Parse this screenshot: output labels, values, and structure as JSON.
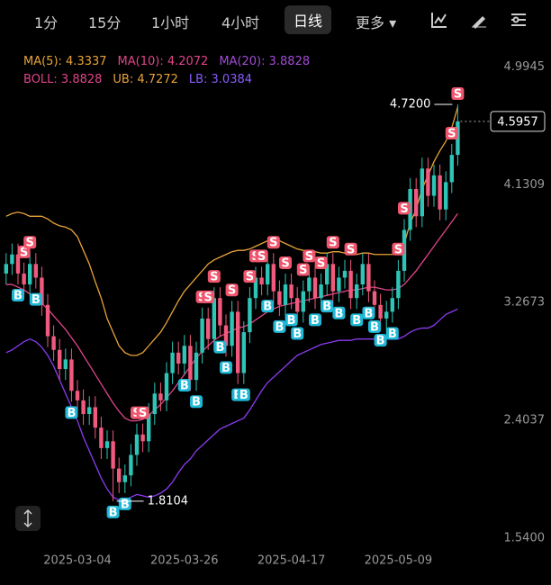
{
  "toolbar": [
    "1分",
    "15分",
    "1小时",
    "4小时",
    "日线",
    "更多"
  ],
  "chart_data": {
    "type": "candlestick",
    "legend_rows": [
      [
        {
          "text": "MA(5): 4.3337",
          "color": "#e8a33a"
        },
        {
          "text": "MA(10): 4.2072",
          "color": "#e0458a"
        },
        {
          "text": "MA(20): 3.8828",
          "color": "#a24bd6"
        }
      ],
      [
        {
          "text": "BOLL: 3.8828",
          "color": "#e0458a"
        },
        {
          "text": "UB: 4.7272",
          "color": "#e8a33a"
        },
        {
          "text": "LB: 3.0384",
          "color": "#8a5cff"
        }
      ]
    ],
    "categories": [
      null,
      null,
      null,
      null,
      null,
      null,
      null,
      null,
      null,
      null,
      null,
      null,
      "2025-03-04",
      null,
      null,
      null,
      null,
      null,
      null,
      null,
      null,
      null,
      null,
      null,
      null,
      null,
      null,
      null,
      null,
      null,
      "2025-03-26",
      null,
      null,
      null,
      null,
      null,
      null,
      null,
      null,
      null,
      null,
      null,
      null,
      null,
      null,
      null,
      null,
      null,
      "2025-04-17",
      null,
      null,
      null,
      null,
      null,
      null,
      null,
      null,
      null,
      null,
      null,
      null,
      null,
      null,
      null,
      null,
      null,
      "2025-05-09",
      null,
      null,
      null,
      null,
      null,
      null,
      null,
      null,
      null,
      null
    ],
    "open": [
      3.48,
      3.55,
      3.62,
      3.48,
      3.4,
      3.55,
      3.45,
      3.25,
      3.02,
      2.92,
      2.78,
      2.85,
      2.62,
      2.55,
      2.45,
      2.5,
      2.35,
      2.2,
      2.25,
      2.05,
      1.95,
      2.0,
      2.15,
      2.3,
      2.25,
      2.45,
      2.6,
      2.55,
      2.75,
      2.9,
      2.82,
      2.95,
      2.7,
      2.9,
      3.15,
      3.0,
      3.3,
      3.1,
      2.95,
      3.2,
      2.75,
      3.05,
      3.3,
      3.45,
      3.4,
      3.55,
      3.35,
      3.25,
      3.4,
      3.3,
      3.2,
      3.35,
      3.45,
      3.3,
      3.4,
      3.55,
      3.35,
      3.45,
      3.5,
      3.3,
      3.4,
      3.55,
      3.35,
      3.25,
      3.15,
      3.2,
      3.3,
      3.5,
      3.8,
      4.1,
      3.9,
      4.25,
      4.05,
      4.2,
      3.95,
      4.15,
      4.35
    ],
    "high": [
      3.63,
      3.7,
      3.7,
      3.56,
      3.63,
      3.63,
      3.53,
      3.33,
      3.1,
      3.0,
      2.93,
      2.93,
      2.7,
      2.63,
      2.58,
      2.58,
      2.43,
      2.33,
      2.33,
      2.13,
      2.08,
      2.23,
      2.38,
      2.38,
      2.53,
      2.68,
      2.68,
      2.83,
      2.98,
      2.98,
      3.03,
      3.03,
      2.98,
      3.23,
      3.23,
      3.38,
      3.38,
      3.18,
      3.28,
      3.28,
      3.13,
      3.38,
      3.53,
      3.53,
      3.63,
      3.63,
      3.43,
      3.48,
      3.48,
      3.38,
      3.43,
      3.53,
      3.53,
      3.48,
      3.63,
      3.63,
      3.53,
      3.58,
      3.58,
      3.48,
      3.63,
      3.63,
      3.43,
      3.33,
      3.28,
      3.38,
      3.58,
      3.88,
      4.18,
      4.18,
      4.33,
      4.33,
      4.28,
      4.28,
      4.23,
      4.43,
      4.72
    ],
    "low": [
      3.4,
      3.47,
      3.4,
      3.32,
      3.32,
      3.37,
      3.17,
      2.94,
      2.84,
      2.7,
      2.7,
      2.54,
      2.47,
      2.37,
      2.37,
      2.27,
      2.12,
      2.12,
      1.8104,
      1.87,
      1.87,
      1.92,
      2.07,
      2.17,
      2.17,
      2.37,
      2.47,
      2.47,
      2.67,
      2.74,
      2.74,
      2.62,
      2.62,
      2.82,
      2.92,
      2.92,
      3.02,
      2.87,
      2.87,
      2.67,
      2.67,
      2.97,
      3.22,
      3.32,
      3.32,
      3.27,
      3.17,
      3.17,
      3.22,
      3.12,
      3.12,
      3.27,
      3.22,
      3.22,
      3.32,
      3.27,
      3.27,
      3.37,
      3.22,
      3.22,
      3.32,
      3.27,
      3.17,
      3.07,
      3.07,
      3.12,
      3.22,
      3.42,
      3.72,
      3.82,
      3.82,
      3.97,
      3.97,
      3.87,
      3.87,
      4.07,
      4.27
    ],
    "close": [
      3.55,
      3.62,
      3.48,
      3.4,
      3.55,
      3.45,
      3.25,
      3.02,
      2.92,
      2.78,
      2.85,
      2.62,
      2.55,
      2.45,
      2.5,
      2.35,
      2.2,
      2.25,
      2.05,
      1.95,
      2.0,
      2.15,
      2.3,
      2.25,
      2.45,
      2.6,
      2.55,
      2.75,
      2.9,
      2.82,
      2.95,
      2.7,
      2.9,
      3.15,
      3.0,
      3.3,
      3.1,
      2.95,
      3.2,
      2.75,
      3.05,
      3.3,
      3.45,
      3.4,
      3.55,
      3.35,
      3.25,
      3.4,
      3.3,
      3.2,
      3.35,
      3.45,
      3.3,
      3.4,
      3.55,
      3.35,
      3.45,
      3.5,
      3.3,
      3.4,
      3.55,
      3.35,
      3.25,
      3.15,
      3.2,
      3.3,
      3.5,
      3.8,
      4.1,
      3.9,
      4.25,
      4.05,
      4.2,
      3.95,
      4.15,
      4.35,
      4.5957
    ],
    "up_color": "#2ec4b6",
    "down_color": "#f05a7e",
    "series": [
      {
        "color": "#e8a33a",
        "values": [
          3.9,
          3.92,
          3.93,
          3.92,
          3.9,
          3.9,
          3.9,
          3.88,
          3.85,
          3.83,
          3.82,
          3.8,
          3.75,
          3.65,
          3.55,
          3.42,
          3.3,
          3.15,
          3.05,
          2.95,
          2.9,
          2.88,
          2.88,
          2.9,
          2.95,
          3.0,
          3.05,
          3.12,
          3.2,
          3.28,
          3.35,
          3.4,
          3.45,
          3.5,
          3.55,
          3.58,
          3.6,
          3.62,
          3.64,
          3.65,
          3.65,
          3.66,
          3.68,
          3.7,
          3.72,
          3.72,
          3.72,
          3.7,
          3.68,
          3.66,
          3.65,
          3.64,
          3.64,
          3.63,
          3.63,
          3.64,
          3.64,
          3.63,
          3.62,
          3.62,
          3.63,
          3.63,
          3.62,
          3.62,
          3.62,
          3.62,
          3.63,
          3.7,
          3.85,
          3.95,
          4.1,
          4.2,
          4.3,
          4.38,
          4.45,
          4.55,
          4.7
        ]
      },
      {
        "color": "#e0458a",
        "values": [
          3.4,
          3.4,
          3.38,
          3.36,
          3.33,
          3.3,
          3.26,
          3.22,
          3.17,
          3.12,
          3.07,
          3.01,
          2.95,
          2.88,
          2.81,
          2.74,
          2.67,
          2.6,
          2.53,
          2.47,
          2.42,
          2.4,
          2.4,
          2.41,
          2.44,
          2.48,
          2.52,
          2.57,
          2.62,
          2.68,
          2.74,
          2.8,
          2.86,
          2.91,
          2.95,
          2.99,
          3.02,
          3.04,
          3.06,
          3.08,
          3.09,
          3.11,
          3.14,
          3.17,
          3.2,
          3.22,
          3.24,
          3.25,
          3.26,
          3.27,
          3.28,
          3.29,
          3.3,
          3.31,
          3.32,
          3.33,
          3.34,
          3.35,
          3.36,
          3.36,
          3.37,
          3.38,
          3.38,
          3.37,
          3.36,
          3.36,
          3.37,
          3.4,
          3.45,
          3.5,
          3.56,
          3.62,
          3.68,
          3.74,
          3.8,
          3.86,
          3.92
        ]
      },
      {
        "color": "#8a3cf0",
        "values": [
          2.9,
          2.92,
          2.95,
          2.98,
          3.0,
          2.98,
          2.94,
          2.88,
          2.8,
          2.7,
          2.6,
          2.5,
          2.4,
          2.28,
          2.18,
          2.08,
          1.98,
          1.9,
          1.84,
          1.82,
          1.82,
          1.84,
          1.86,
          1.85,
          1.84,
          1.85,
          1.87,
          1.9,
          1.95,
          2.02,
          2.08,
          2.12,
          2.18,
          2.22,
          2.26,
          2.3,
          2.34,
          2.36,
          2.38,
          2.4,
          2.42,
          2.48,
          2.55,
          2.62,
          2.68,
          2.72,
          2.76,
          2.8,
          2.84,
          2.88,
          2.9,
          2.92,
          2.94,
          2.96,
          2.97,
          2.98,
          2.99,
          2.99,
          2.99,
          3.0,
          3.0,
          3.0,
          3.0,
          3.0,
          3.0,
          3.0,
          3.0,
          3.02,
          3.05,
          3.07,
          3.08,
          3.08,
          3.1,
          3.14,
          3.18,
          3.2,
          3.22
        ]
      }
    ],
    "signals": [
      null,
      null,
      "B",
      "S",
      "S",
      "B",
      null,
      null,
      null,
      null,
      null,
      "B",
      null,
      null,
      null,
      null,
      null,
      null,
      "B",
      null,
      "B",
      null,
      "S",
      "S",
      null,
      null,
      null,
      null,
      null,
      null,
      "B",
      null,
      "B",
      "S",
      "S",
      "S",
      "B",
      "B",
      "S",
      "B",
      "B",
      "S",
      "S",
      "S",
      "B",
      "S",
      "B",
      "S",
      "B",
      "B",
      "S",
      "S",
      "B",
      "S",
      "B",
      "S",
      "B",
      null,
      "S",
      "B",
      null,
      "B",
      "B",
      "B",
      null,
      "B",
      "S",
      "S",
      null,
      null,
      null,
      null,
      null,
      null,
      null,
      "S",
      "S"
    ],
    "buy_color": "#1fb8d6",
    "sell_color": "#f0566e",
    "ylim": [
      1.46,
      5.09
    ],
    "yticks": [
      {
        "value": 1.54,
        "label": "1.5400"
      },
      2.4037,
      3.2673,
      4.1309,
      4.9945
    ],
    "high_mark": {
      "value": 4.72,
      "label": "4.7200"
    },
    "low_mark": 1.8104,
    "last_price": 4.5957
  }
}
